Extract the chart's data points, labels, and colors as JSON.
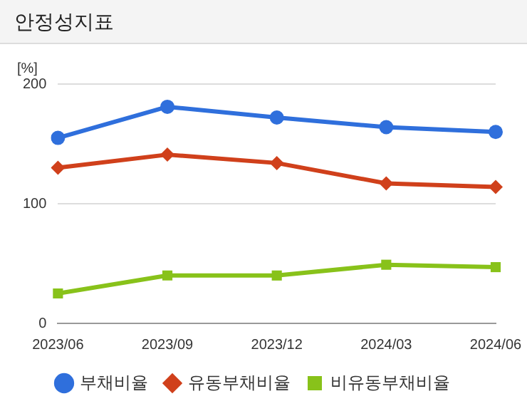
{
  "chart_data": {
    "type": "line",
    "title": "안정성지표",
    "ylabel": "[%]",
    "categories": [
      "2023/06",
      "2023/09",
      "2023/12",
      "2024/03",
      "2024/06"
    ],
    "series": [
      {
        "name": "부채비율",
        "color": "#2f6fdc",
        "marker": "circle",
        "values": [
          155,
          181,
          172,
          164,
          160
        ]
      },
      {
        "name": "유동부채비율",
        "color": "#d0401b",
        "marker": "diamond",
        "values": [
          130,
          141,
          134,
          117,
          114
        ]
      },
      {
        "name": "비유동부채비율",
        "color": "#88c21a",
        "marker": "square",
        "values": [
          25,
          40,
          40,
          49,
          47
        ]
      }
    ],
    "ylim": [
      0,
      200
    ],
    "yticks": [
      0,
      100,
      200
    ],
    "grid": "y",
    "legend": "bottom"
  }
}
